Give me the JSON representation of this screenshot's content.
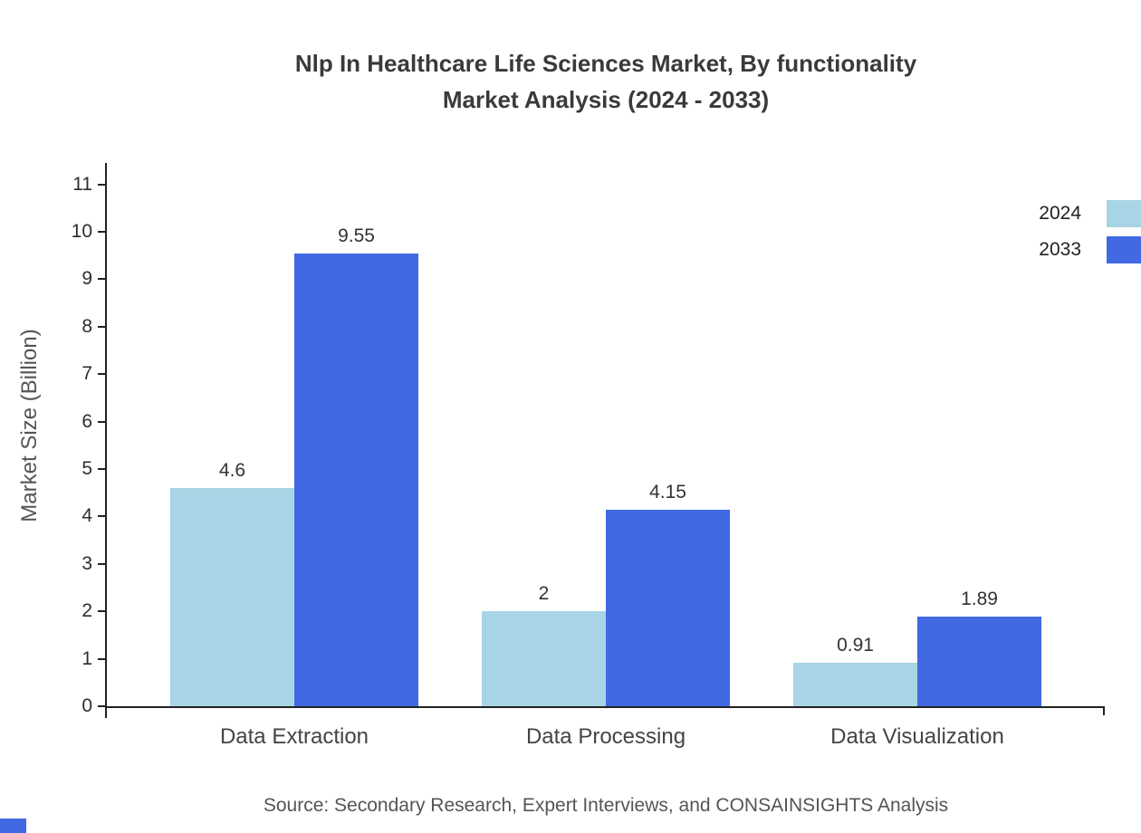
{
  "header": {
    "title_lines": [
      "Nlp In Healthcare Life Sciences Market, By functionality",
      "Market Analysis (2024 - 2033)"
    ]
  },
  "source": "Source: Secondary Research, Expert Interviews, and CONSAINSIGHTS Analysis",
  "chart_data": {
    "type": "bar",
    "title": "Nlp In Healthcare Life Sciences Market, By functionality Market Analysis (2024 - 2033)",
    "categories": [
      "Data Extraction",
      "Data Processing",
      "Data Visualization"
    ],
    "series": [
      {
        "name": "2024",
        "color": "#a9d4e5",
        "values": [
          4.6,
          2,
          0.91
        ]
      },
      {
        "name": "2033",
        "color": "#4169e1",
        "values": [
          9.55,
          4.15,
          1.89
        ]
      }
    ],
    "xlabel": "",
    "ylabel": "Market Size (Billion)",
    "ylim": [
      0,
      11
    ],
    "yticks": [
      0,
      1,
      2,
      3,
      4,
      5,
      6,
      7,
      8,
      9,
      10,
      11
    ],
    "grid": false,
    "legend_position": "top-right",
    "accent_color": "#4169e1"
  }
}
